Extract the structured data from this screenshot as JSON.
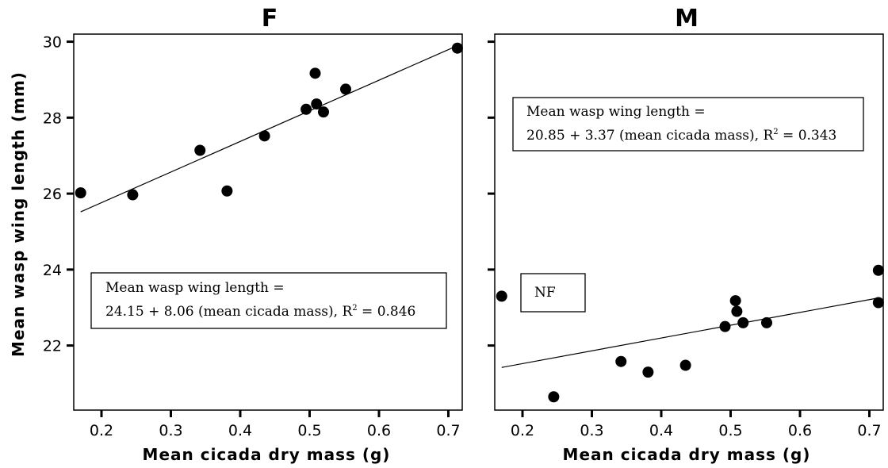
{
  "chart_data": [
    {
      "type": "scatter",
      "title": "F",
      "xlabel": "Mean cicada dry mass (g)",
      "ylabel": "Mean wasp wing length (mm)",
      "xlim": [
        0.16,
        0.72
      ],
      "ylim": [
        20.3,
        30.2
      ],
      "xticks": [
        "0.2",
        "0.3",
        "0.4",
        "0.5",
        "0.6",
        "0.7"
      ],
      "yticks": [
        "22",
        "24",
        "26",
        "28",
        "30"
      ],
      "series": [
        {
          "x": [
            0.17,
            0.245,
            0.342,
            0.381,
            0.435,
            0.495,
            0.508,
            0.51,
            0.52,
            0.552,
            0.713
          ],
          "y": [
            26.02,
            25.97,
            27.14,
            26.07,
            27.52,
            28.22,
            29.17,
            28.36,
            28.15,
            28.75,
            29.83
          ]
        }
      ],
      "regression": {
        "intercept": 24.15,
        "slope": 8.06,
        "x_range": [
          0.17,
          0.713
        ]
      },
      "annotation": [
        "Mean wasp wing length =",
        "24.15 + 8.06 (mean cicada mass), R",
        "2",
        " = 0.846"
      ]
    },
    {
      "type": "scatter",
      "title": "M",
      "xlabel": "Mean cicada dry mass (g)",
      "ylabel": "",
      "xlim": [
        0.16,
        0.72
      ],
      "ylim": [
        20.3,
        30.2
      ],
      "xticks": [
        "0.2",
        "0.3",
        "0.4",
        "0.5",
        "0.6",
        "0.7"
      ],
      "yticks": [
        "",
        "",
        "",
        "",
        ""
      ],
      "series": [
        {
          "x": [
            0.17,
            0.245,
            0.342,
            0.381,
            0.435,
            0.492,
            0.507,
            0.509,
            0.518,
            0.552,
            0.713,
            0.713
          ],
          "y": [
            23.3,
            20.65,
            21.58,
            21.3,
            21.48,
            22.5,
            23.18,
            22.9,
            22.6,
            22.6,
            23.98,
            23.13
          ]
        }
      ],
      "regression": {
        "intercept": 20.85,
        "slope": 3.37,
        "x_range": [
          0.17,
          0.713
        ]
      },
      "annotation": [
        "Mean wasp wing length =",
        "20.85 + 3.37 (mean cicada mass), R",
        "2",
        " = 0.343"
      ],
      "point_label": "NF"
    }
  ]
}
